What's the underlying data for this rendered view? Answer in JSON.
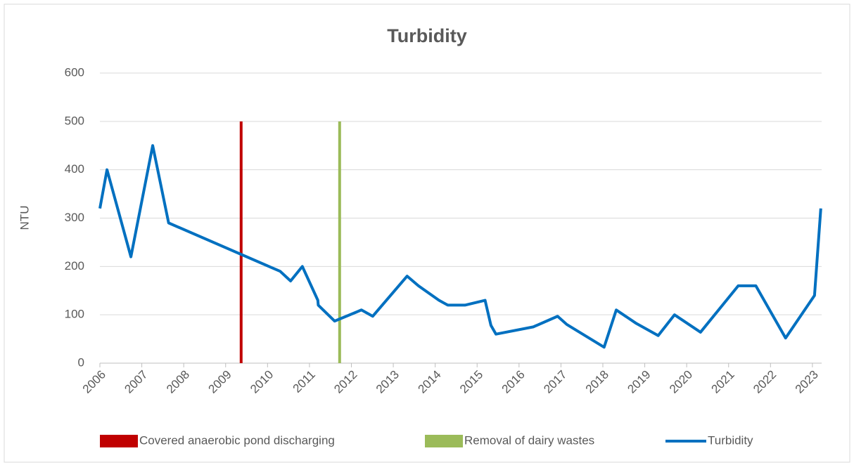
{
  "chart_data": {
    "type": "line",
    "title": "Turbidity",
    "ylabel": "NTU",
    "xlim": [
      2006,
      2023.22
    ],
    "ylim": [
      0,
      600
    ],
    "xticks": [
      2006,
      2007,
      2008,
      2009,
      2010,
      2011,
      2012,
      2013,
      2014,
      2015,
      2016,
      2017,
      2018,
      2019,
      2020,
      2021,
      2022,
      2023
    ],
    "yticks": [
      0,
      100,
      200,
      300,
      400,
      500,
      600
    ],
    "grid": true,
    "series": [
      {
        "name": "Covered anaerobic pond discharging",
        "color": "#c00000",
        "x": [
          2009.37,
          2009.37
        ],
        "values": [
          0,
          500
        ]
      },
      {
        "name": "Removal of dairy wastes",
        "color": "#9bbb59",
        "x": [
          2011.72,
          2011.72
        ],
        "values": [
          0,
          500
        ]
      },
      {
        "name": "Turbidity",
        "color": "#0070c0",
        "x": [
          2006.0,
          2006.17,
          2006.74,
          2007.26,
          2007.64,
          2010.3,
          2010.55,
          2010.83,
          2011.2,
          2011.21,
          2011.6,
          2012.24,
          2012.51,
          2013.33,
          2013.6,
          2014.09,
          2014.3,
          2014.71,
          2015.19,
          2015.33,
          2015.45,
          2016.34,
          2016.92,
          2017.14,
          2018.03,
          2018.32,
          2018.8,
          2019.32,
          2019.71,
          2020.33,
          2021.23,
          2021.65,
          2022.36,
          2023.05,
          2023.2
        ],
        "values": [
          320,
          400,
          220,
          450,
          290,
          190,
          170,
          200,
          130,
          120,
          87,
          110,
          97,
          180,
          160,
          130,
          120,
          120,
          130,
          78,
          60,
          75,
          97,
          80,
          33,
          110,
          82,
          57,
          100,
          64,
          160,
          160,
          52,
          140,
          320
        ]
      }
    ]
  }
}
